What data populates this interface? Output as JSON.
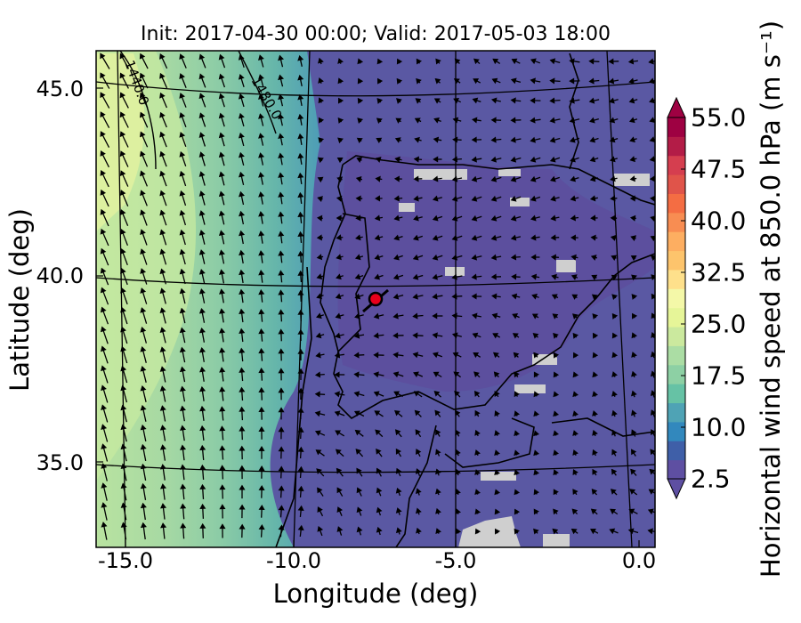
{
  "title": "Init: 2017-04-30 00:00; Valid: 2017-05-03 18:00",
  "xlabel": "Longitude (deg)",
  "ylabel": "Latitude (deg)",
  "x_ticks": [
    "-15.0",
    "-10.0",
    "-5.0",
    "0.0"
  ],
  "y_ticks": [
    "45.0",
    "40.0",
    "35.0"
  ],
  "colorbar": {
    "label": "Horizontal wind speed at 850.0 hPa (m s⁻¹)",
    "ticks": [
      "55.0",
      "47.5",
      "40.0",
      "32.5",
      "25.0",
      "17.5",
      "10.0",
      "2.5"
    ],
    "colors": [
      "#5e4fa2",
      "#3f5fa8",
      "#3288bd",
      "#4fa3b5",
      "#66c2a5",
      "#8dd0a4",
      "#abdda4",
      "#cbe99e",
      "#e6f598",
      "#f4f8a8",
      "#fee08b",
      "#fdc46c",
      "#fdae61",
      "#f88d52",
      "#f46d43",
      "#e0544a",
      "#d53e4f",
      "#b31c47",
      "#9e0142"
    ]
  },
  "contour_labels": [
    "1440.0",
    "1480.0"
  ],
  "chart_data": {
    "type": "map",
    "title": "Init: 2017-04-30 00:00; Valid: 2017-05-03 18:00",
    "xlabel": "Longitude (deg)",
    "ylabel": "Latitude (deg)",
    "xlim": [
      -16,
      0.3
    ],
    "ylim": [
      32.5,
      46
    ],
    "colorbar_range": [
      2.5,
      55.0
    ],
    "colorbar_step": 2.5,
    "field": "Horizontal wind speed at 850.0 hPa",
    "contours_geopotential": [
      1440.0,
      1480.0
    ],
    "marker": {
      "lon": -7.7,
      "lat": 39.4
    }
  }
}
